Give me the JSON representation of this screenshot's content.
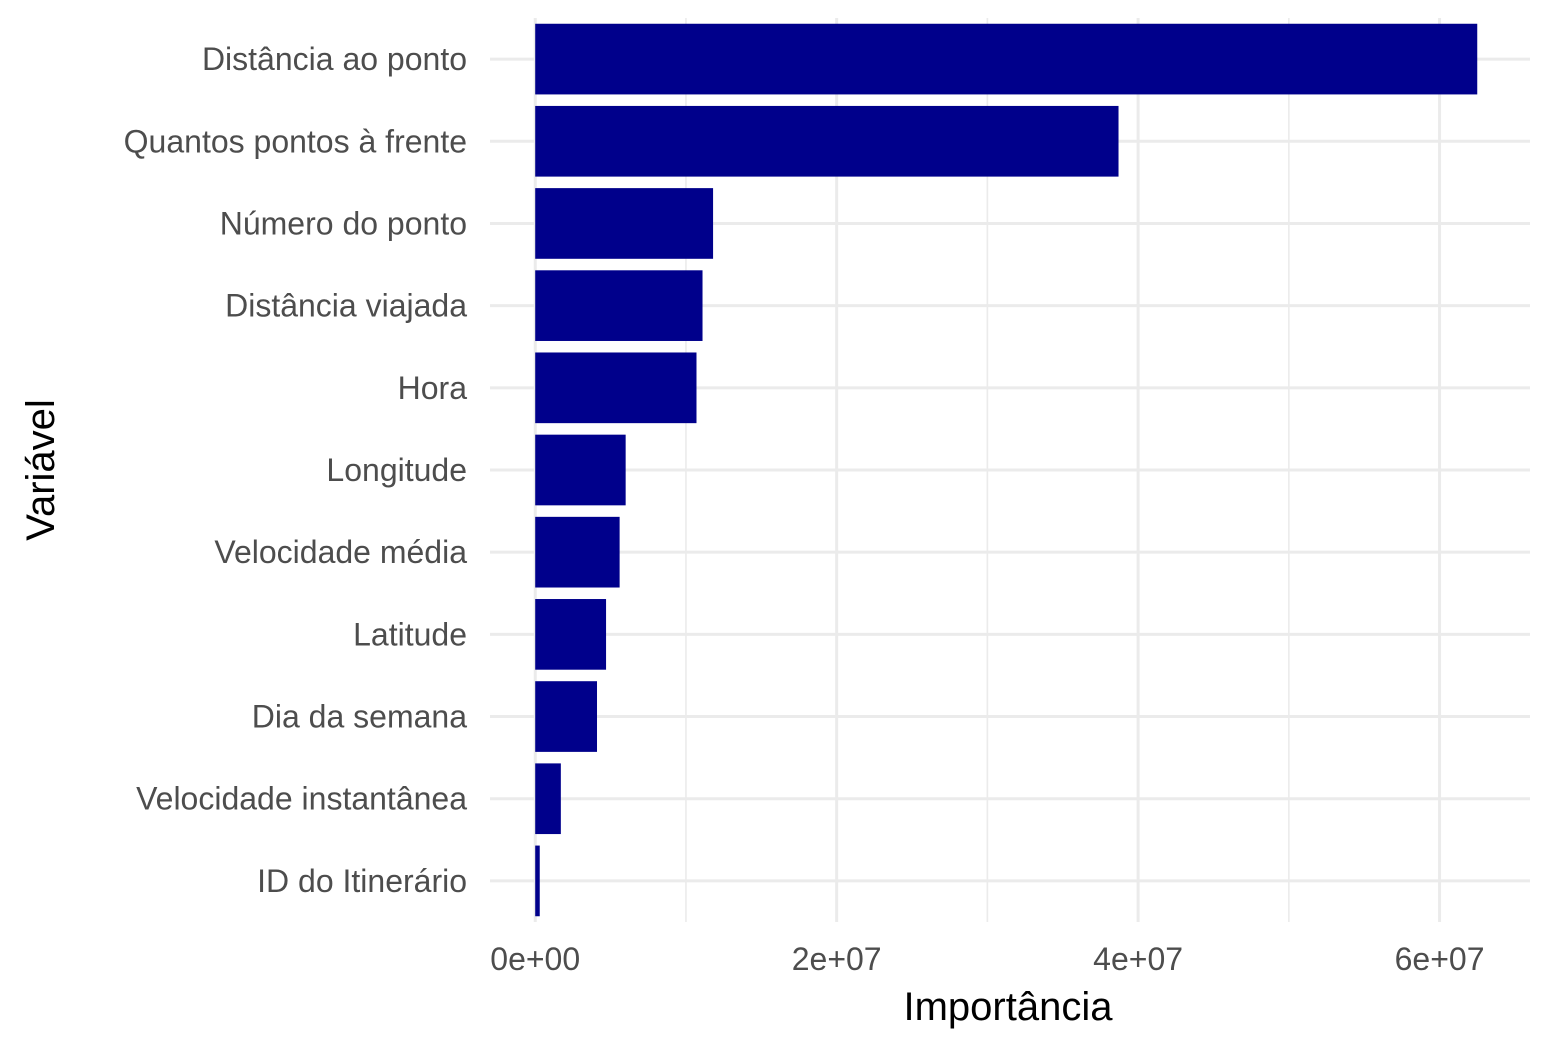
{
  "chart_data": {
    "type": "bar",
    "orientation": "horizontal",
    "xlabel": "Importância",
    "ylabel": "Variável",
    "xlim": [
      -3000000,
      66000000
    ],
    "xticks": [
      0,
      20000000,
      40000000,
      60000000
    ],
    "xtick_labels": [
      "0e+00",
      "2e+07",
      "4e+07",
      "6e+07"
    ],
    "grid": true,
    "bar_color": "#00008B",
    "categories": [
      "Distância ao ponto",
      "Quantos pontos à frente",
      "Número do ponto",
      "Distância viajada",
      "Hora",
      "Longitude",
      "Velocidade média",
      "Latitude",
      "Dia da semana",
      "Velocidade instantânea",
      "ID do Itinerário"
    ],
    "values": [
      62500000,
      38700000,
      11800000,
      11100000,
      10700000,
      6000000,
      5600000,
      4700000,
      4100000,
      1700000,
      300000
    ]
  }
}
